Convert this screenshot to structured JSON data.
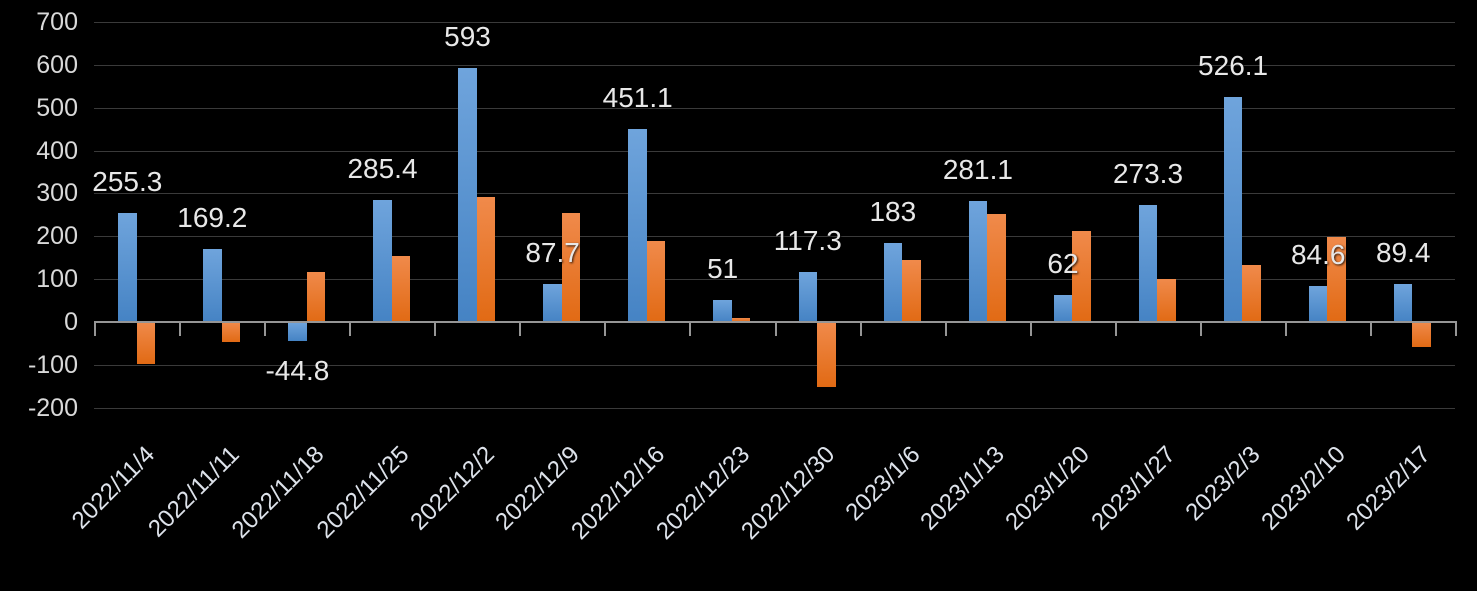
{
  "chart_data": {
    "type": "bar",
    "title": "",
    "xlabel": "",
    "ylabel": "",
    "legend_position": "none",
    "grid": true,
    "categories": [
      "2022/11/4",
      "2022/11/11",
      "2022/11/18",
      "2022/11/25",
      "2022/12/2",
      "2022/12/9",
      "2022/12/16",
      "2022/12/23",
      "2022/12/30",
      "2023/1/6",
      "2023/1/13",
      "2023/1/20",
      "2023/1/27",
      "2023/2/3",
      "2023/2/10",
      "2023/2/17"
    ],
    "series": [
      {
        "name": "blue-series",
        "color_top": "#6FA4DC",
        "color_bottom": "#4583C4",
        "values": [
          255.3,
          169.2,
          -44.8,
          285.4,
          593,
          87.7,
          451.1,
          51,
          117.3,
          183,
          281.1,
          62,
          273.3,
          526.1,
          84.6,
          89.4
        ],
        "data_labels": [
          "255.3",
          "169.2",
          "-44.8",
          "285.4",
          "593",
          "87.7",
          "451.1",
          "51",
          "117.3",
          "183",
          "281.1",
          "62",
          "273.3",
          "526.1",
          "84.6",
          "89.4"
        ]
      },
      {
        "name": "orange-series",
        "color_top": "#F08A4B",
        "color_bottom": "#E16A14",
        "values": [
          -98,
          -48,
          116,
          154,
          292,
          255,
          188,
          9,
          -152,
          144,
          253,
          213,
          100,
          133,
          199,
          -58
        ],
        "data_labels": null
      }
    ],
    "y_axis": {
      "ticks": [
        700,
        600,
        500,
        400,
        300,
        200,
        100,
        0,
        -100,
        -200
      ],
      "min": -200,
      "max": 700
    },
    "x_axis": {
      "label_rotation_deg": -45
    },
    "colors": {
      "background": "#000000",
      "gridline": "#3a3a3a",
      "axis_line": "#969696",
      "axis_text": "#d9d9d9",
      "data_label_text": "#e8e8e8"
    }
  }
}
